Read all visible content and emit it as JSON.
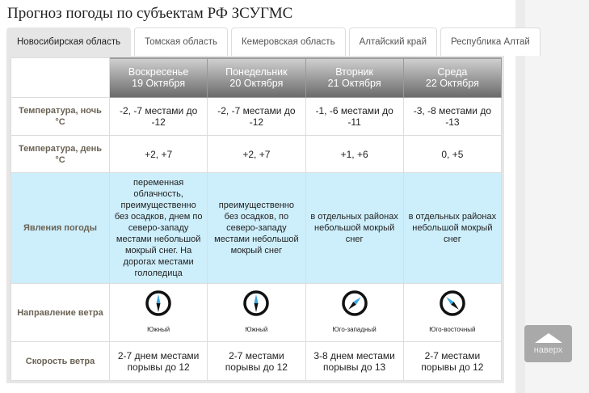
{
  "title": "Прогноз погоды по субъектам РФ ЗСУГМС",
  "tabs": [
    {
      "label": "Новосибирская область"
    },
    {
      "label": "Томская область"
    },
    {
      "label": "Кемеровская область"
    },
    {
      "label": "Алтайский край"
    },
    {
      "label": "Республика Алтай"
    }
  ],
  "days": [
    {
      "weekday": "Воскресенье",
      "date": "19 Октября"
    },
    {
      "weekday": "Понедельник",
      "date": "20 Октября"
    },
    {
      "weekday": "Вторник",
      "date": "21 Октября"
    },
    {
      "weekday": "Среда",
      "date": "22 Октября"
    }
  ],
  "rows": {
    "night": {
      "label": "Температура, ночь °C",
      "values": [
        "-2, -7 местами до -12",
        "-2, -7 местами до -12",
        "-1, -6 местами до -11",
        "-3, -8 местами до -13"
      ]
    },
    "day": {
      "label": "Температура, день °C",
      "values": [
        "+2, +7",
        "+2, +7",
        "+1, +6",
        "0, +5"
      ]
    },
    "phen": {
      "label": "Явления погоды",
      "values": [
        "переменная облачность, преимущественно без осадков, днем по северо-западу местами небольшой мокрый снег. На дорогах местами гололедица",
        "преимущественно без осадков, по северо-западу местами небольшой мокрый снег",
        "в отдельных районах небольшой мокрый снег",
        "в отдельных районах небольшой мокрый снег"
      ]
    },
    "wind_dir": {
      "label": "Направление ветра",
      "values": [
        "Южный",
        "Южный",
        "Юго-западный",
        "Юго-восточный"
      ],
      "icons": [
        "compass-south-icon",
        "compass-south-icon",
        "compass-southwest-icon",
        "compass-southeast-icon"
      ]
    },
    "wind_speed": {
      "label": "Скорость ветра",
      "values": [
        "2-7 днем местами порывы до 12",
        "2-7 местами порывы до 12",
        "3-8 днем местами порывы до 13",
        "2-7 местами порывы до 12"
      ]
    }
  },
  "back_to_top": "наверх"
}
